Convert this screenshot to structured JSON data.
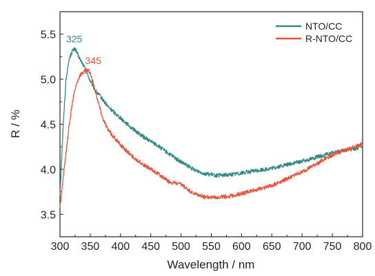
{
  "chart_data": {
    "type": "line",
    "xlabel": "Wavelength / nm",
    "ylabel": "R / %",
    "xlim": [
      300,
      800
    ],
    "ylim": [
      3.25,
      5.75
    ],
    "x_ticks": [
      300,
      350,
      400,
      450,
      500,
      550,
      600,
      650,
      700,
      750,
      800
    ],
    "y_ticks": [
      3.5,
      4.0,
      4.5,
      5.0,
      5.5
    ],
    "y_tick_labels": [
      "3.5",
      "4.0",
      "4.5",
      "5.0",
      "5.5"
    ],
    "grid": false,
    "legend_position": "top-right",
    "series": [
      {
        "name": "NTO/CC",
        "color": "#2e8b84",
        "x": [
          300,
          305,
          310,
          315,
          320,
          325,
          330,
          335,
          340,
          345,
          350,
          360,
          370,
          380,
          400,
          420,
          440,
          460,
          480,
          500,
          520,
          540,
          560,
          580,
          600,
          650,
          700,
          750,
          800
        ],
        "y": [
          3.72,
          4.45,
          5.0,
          5.22,
          5.31,
          5.34,
          5.26,
          5.2,
          5.14,
          5.06,
          4.98,
          4.86,
          4.78,
          4.69,
          4.57,
          4.45,
          4.35,
          4.27,
          4.17,
          4.08,
          4.0,
          3.95,
          3.93,
          3.94,
          3.96,
          4.01,
          4.09,
          4.18,
          4.25
        ]
      },
      {
        "name": "R-NTO/CC",
        "color": "#e8533a",
        "x": [
          300,
          305,
          310,
          315,
          320,
          325,
          330,
          335,
          340,
          345,
          350,
          360,
          370,
          380,
          400,
          420,
          440,
          460,
          480,
          500,
          520,
          540,
          560,
          580,
          600,
          650,
          700,
          750,
          800
        ],
        "y": [
          3.58,
          3.88,
          4.18,
          4.48,
          4.72,
          4.9,
          5.0,
          5.06,
          5.09,
          5.1,
          5.07,
          4.83,
          4.58,
          4.43,
          4.27,
          4.14,
          4.04,
          3.96,
          3.86,
          3.83,
          3.73,
          3.69,
          3.69,
          3.7,
          3.73,
          3.82,
          3.97,
          4.16,
          4.28
        ]
      }
    ],
    "annotations": [
      {
        "text": "325",
        "x": 325,
        "y": 5.34,
        "color": "#2e8b84"
      },
      {
        "text": "345",
        "x": 345,
        "y": 5.1,
        "color": "#e8533a"
      }
    ]
  }
}
